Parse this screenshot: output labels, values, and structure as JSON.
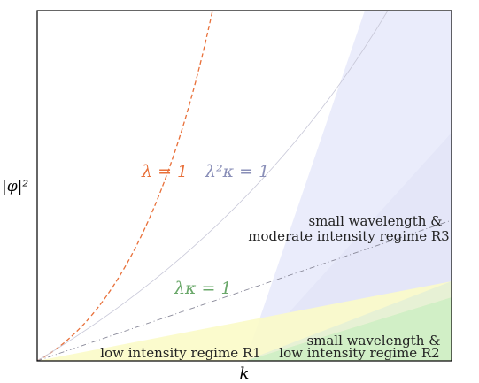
{
  "axes": {
    "xlabel": "k",
    "ylabel": "|φ|²"
  },
  "curves": [
    {
      "label": "λ = 1",
      "color": "#e8703a",
      "style": "dashed"
    },
    {
      "label": "λ²κ = 1",
      "color": "#8a8fb8",
      "style": "solid-thin"
    },
    {
      "label": "λκ = 1",
      "color": "#6aa86a",
      "style": "dash-dot"
    }
  ],
  "regions": {
    "r1": {
      "label": "low intensity regime R1",
      "color": "#fbfbc8"
    },
    "r2": {
      "line1": "small wavelength &",
      "line2": "low intensity regime R2",
      "color": "#cfeec5"
    },
    "r3": {
      "line1": "small wavelength &",
      "line2": "moderate intensity regime R3",
      "color": "#e8eafb"
    }
  }
}
